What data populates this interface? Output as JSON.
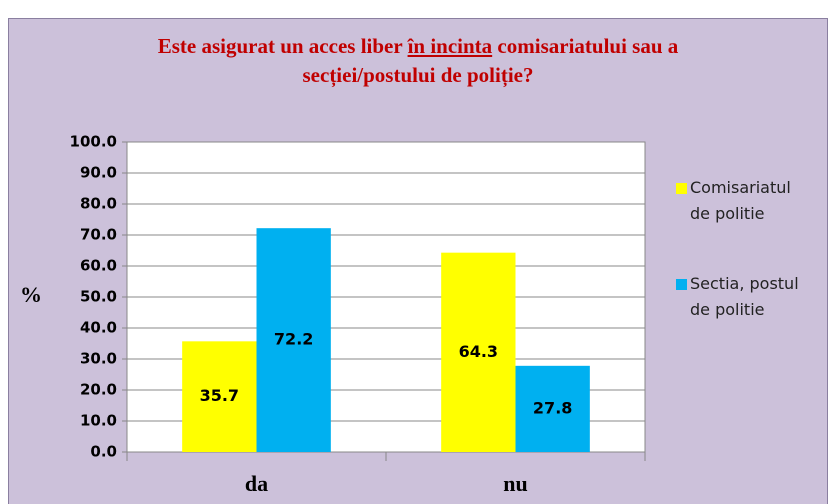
{
  "chart_data": {
    "type": "bar",
    "title": [
      "Este asigurat un acces liber",
      "în incinta",
      "comisariatului sau a",
      "secției/postului de poliție?"
    ],
    "ylabel": "%",
    "categories": [
      "da",
      "nu"
    ],
    "series": [
      {
        "name": "Comisariatul de politie",
        "color": "#ffff00",
        "values": [
          35.7,
          64.3
        ]
      },
      {
        "name": "Sectia, postul de politie",
        "color": "#00b0f0",
        "values": [
          72.2,
          27.8
        ]
      }
    ],
    "ylim": [
      0,
      100
    ],
    "yticks": [
      {
        "value": 0,
        "label": "0.0"
      },
      {
        "value": 10,
        "label": "10.0"
      },
      {
        "value": 20,
        "label": "20.0"
      },
      {
        "value": 30,
        "label": "30.0"
      },
      {
        "value": 40,
        "label": "40.0"
      },
      {
        "value": 50,
        "label": "50.0"
      },
      {
        "value": 60,
        "label": "60.0"
      },
      {
        "value": 70,
        "label": "70.0"
      },
      {
        "value": 80,
        "label": "80.0"
      },
      {
        "value": 90,
        "label": "90.0"
      },
      {
        "value": 100,
        "label": "100.0"
      }
    ],
    "grid": true,
    "legend": "right"
  }
}
